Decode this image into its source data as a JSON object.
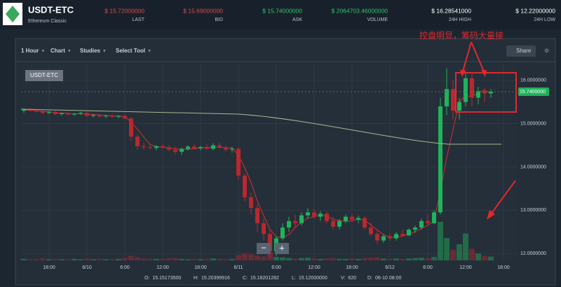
{
  "header": {
    "symbol": "USDT-ETC",
    "name": "Ethereum Classic",
    "stats": [
      {
        "value": "$ 15.72000000",
        "label": "LAST",
        "color": "#e04848"
      },
      {
        "value": "$ 15.69000000",
        "label": "BID",
        "color": "#e04848"
      },
      {
        "value": "$ 15.74000000",
        "label": "ASK",
        "color": "#2ec46a"
      },
      {
        "value": "$ 2064703.46000000",
        "label": "VOLUME",
        "color": "#2ec46a"
      },
      {
        "value": "$ 16.28541000",
        "label": "24H HIGH",
        "color": "#ffffff"
      },
      {
        "value": "$ 12.22000000",
        "label": "24H LOW",
        "color": "#ffffff"
      }
    ]
  },
  "toolbar": {
    "items": [
      "1 Hour",
      "Chart",
      "Studies",
      "Select Tool"
    ],
    "share": "Share",
    "zoom_out": "−",
    "zoom_in": "+"
  },
  "chart": {
    "type": "candlestick",
    "label": "USDT-ETC",
    "annotation": "控盘明显，筹码大量接",
    "up_color": "#1fb35b",
    "down_color": "#b8282e",
    "ylim": [
      11.84,
      16.37
    ],
    "yticks": [
      {
        "value": 16,
        "label": "16.0000000"
      },
      {
        "value": 15,
        "label": "15.0000000"
      },
      {
        "value": 14,
        "label": "14.0000000"
      },
      {
        "value": 13,
        "label": "13.0000000"
      },
      {
        "value": 12,
        "label": "12.0000000"
      }
    ],
    "xlim": [
      0,
      76
    ],
    "xticks": [
      {
        "value": 4,
        "label": "18:00"
      },
      {
        "value": 10,
        "label": "6/10"
      },
      {
        "value": 16,
        "label": "6:00"
      },
      {
        "value": 22,
        "label": "12:00"
      },
      {
        "value": 28,
        "label": "18:00"
      },
      {
        "value": 34,
        "label": "6/11"
      },
      {
        "value": 40,
        "label": "6:00"
      },
      {
        "value": 46,
        "label": "12:00"
      },
      {
        "value": 52,
        "label": "18:00"
      },
      {
        "value": 58,
        "label": "6/12"
      },
      {
        "value": 64,
        "label": "6:00"
      },
      {
        "value": 70,
        "label": "12:00"
      },
      {
        "value": 76,
        "label": "18:00"
      }
    ],
    "last_price": {
      "value": 15.74,
      "label": "15.7400000"
    },
    "candles": [
      [
        15.3,
        15.35,
        15.25,
        15.32
      ],
      [
        15.32,
        15.36,
        15.28,
        15.3
      ],
      [
        15.3,
        15.33,
        15.26,
        15.28
      ],
      [
        15.28,
        15.3,
        15.22,
        15.25
      ],
      [
        15.25,
        15.29,
        15.22,
        15.27
      ],
      [
        15.27,
        15.3,
        15.2,
        15.22
      ],
      [
        15.22,
        15.26,
        15.18,
        15.24
      ],
      [
        15.24,
        15.27,
        15.2,
        15.21
      ],
      [
        15.21,
        15.25,
        15.18,
        15.23
      ],
      [
        15.23,
        15.27,
        15.2,
        15.25
      ],
      [
        15.25,
        15.28,
        15.16,
        15.18
      ],
      [
        15.18,
        15.22,
        15.14,
        15.2
      ],
      [
        15.2,
        15.23,
        15.15,
        15.17
      ],
      [
        15.17,
        15.21,
        15.13,
        15.19
      ],
      [
        15.19,
        15.22,
        15.14,
        15.16
      ],
      [
        15.16,
        15.2,
        15.12,
        15.18
      ],
      [
        15.18,
        15.22,
        15.1,
        15.12
      ],
      [
        15.12,
        15.15,
        14.6,
        14.7
      ],
      [
        14.7,
        14.75,
        14.4,
        14.48
      ],
      [
        14.48,
        14.55,
        14.4,
        14.46
      ],
      [
        14.46,
        14.52,
        14.4,
        14.44
      ],
      [
        14.44,
        14.5,
        14.38,
        14.48
      ],
      [
        14.48,
        14.53,
        14.42,
        14.45
      ],
      [
        14.45,
        14.5,
        14.36,
        14.4
      ],
      [
        14.4,
        14.48,
        14.3,
        14.35
      ],
      [
        14.35,
        14.45,
        14.28,
        14.42
      ],
      [
        14.42,
        14.5,
        14.38,
        14.47
      ],
      [
        14.47,
        14.52,
        14.4,
        14.43
      ],
      [
        14.43,
        14.49,
        14.38,
        14.46
      ],
      [
        14.46,
        14.52,
        14.4,
        14.42
      ],
      [
        14.42,
        14.55,
        14.38,
        14.5
      ],
      [
        14.5,
        14.56,
        14.42,
        14.45
      ],
      [
        14.45,
        14.5,
        14.35,
        14.4
      ],
      [
        14.4,
        14.46,
        14.33,
        14.42
      ],
      [
        14.42,
        14.46,
        13.7,
        13.8
      ],
      [
        13.8,
        13.85,
        13.2,
        13.3
      ],
      [
        13.3,
        13.4,
        12.9,
        13.05
      ],
      [
        13.05,
        13.15,
        12.5,
        12.7
      ],
      [
        12.7,
        12.8,
        12.3,
        12.45
      ],
      [
        12.45,
        12.55,
        11.9,
        12.05
      ],
      [
        12.05,
        12.4,
        11.95,
        12.35
      ],
      [
        12.35,
        12.7,
        12.3,
        12.6
      ],
      [
        12.6,
        12.85,
        12.5,
        12.75
      ],
      [
        12.75,
        12.9,
        12.6,
        12.7
      ],
      [
        12.7,
        12.95,
        12.65,
        12.88
      ],
      [
        12.88,
        13.05,
        12.8,
        12.95
      ],
      [
        12.95,
        13.02,
        12.8,
        12.85
      ],
      [
        12.85,
        12.98,
        12.75,
        12.92
      ],
      [
        12.92,
        12.97,
        12.7,
        12.75
      ],
      [
        12.75,
        12.85,
        12.55,
        12.62
      ],
      [
        12.62,
        12.8,
        12.55,
        12.75
      ],
      [
        12.75,
        12.9,
        12.7,
        12.85
      ],
      [
        12.85,
        12.92,
        12.72,
        12.78
      ],
      [
        12.78,
        12.88,
        12.7,
        12.82
      ],
      [
        12.82,
        12.86,
        12.55,
        12.6
      ],
      [
        12.6,
        12.7,
        12.4,
        12.45
      ],
      [
        12.45,
        12.55,
        12.22,
        12.3
      ],
      [
        12.3,
        12.45,
        12.25,
        12.4
      ],
      [
        12.4,
        12.48,
        12.3,
        12.35
      ],
      [
        12.35,
        12.5,
        12.3,
        12.45
      ],
      [
        12.45,
        12.55,
        12.38,
        12.42
      ],
      [
        12.42,
        12.58,
        12.4,
        12.55
      ],
      [
        12.55,
        12.65,
        12.48,
        12.6
      ],
      [
        12.6,
        12.8,
        12.55,
        12.75
      ],
      [
        12.75,
        12.9,
        12.65,
        12.7
      ],
      [
        12.7,
        13.0,
        12.68,
        12.95
      ],
      [
        12.95,
        15.6,
        12.9,
        15.4
      ],
      [
        15.4,
        16.28,
        15.2,
        15.8
      ],
      [
        15.8,
        16.0,
        15.1,
        15.3
      ],
      [
        15.3,
        15.6,
        15.1,
        15.5
      ],
      [
        15.5,
        16.2,
        15.4,
        16.05
      ],
      [
        16.05,
        16.15,
        15.4,
        15.6
      ],
      [
        15.6,
        15.85,
        15.45,
        15.75
      ],
      [
        15.75,
        15.82,
        15.5,
        15.7
      ],
      [
        15.7,
        15.8,
        15.6,
        15.74
      ]
    ],
    "volume": [
      4,
      3,
      3,
      5,
      3,
      4,
      3,
      3,
      4,
      3,
      5,
      3,
      4,
      3,
      3,
      4,
      6,
      12,
      8,
      5,
      4,
      4,
      3,
      5,
      6,
      4,
      3,
      4,
      3,
      4,
      5,
      4,
      3,
      4,
      14,
      18,
      16,
      12,
      10,
      22,
      9,
      8,
      6,
      5,
      6,
      7,
      5,
      4,
      5,
      6,
      4,
      4,
      5,
      4,
      6,
      7,
      8,
      5,
      4,
      5,
      4,
      5,
      6,
      7,
      6,
      9,
      100,
      58,
      28,
      42,
      70,
      30,
      18,
      12,
      10
    ]
  },
  "ohlc": [
    {
      "label": "O:",
      "value": "15.15173500"
    },
    {
      "label": "H:",
      "value": "15.20399916"
    },
    {
      "label": "C:",
      "value": "15.18201282"
    },
    {
      "label": "L:",
      "value": "15.12000000"
    },
    {
      "label": "V:",
      "value": "620"
    },
    {
      "label": "D:",
      "value": "06-10 08:00"
    }
  ]
}
